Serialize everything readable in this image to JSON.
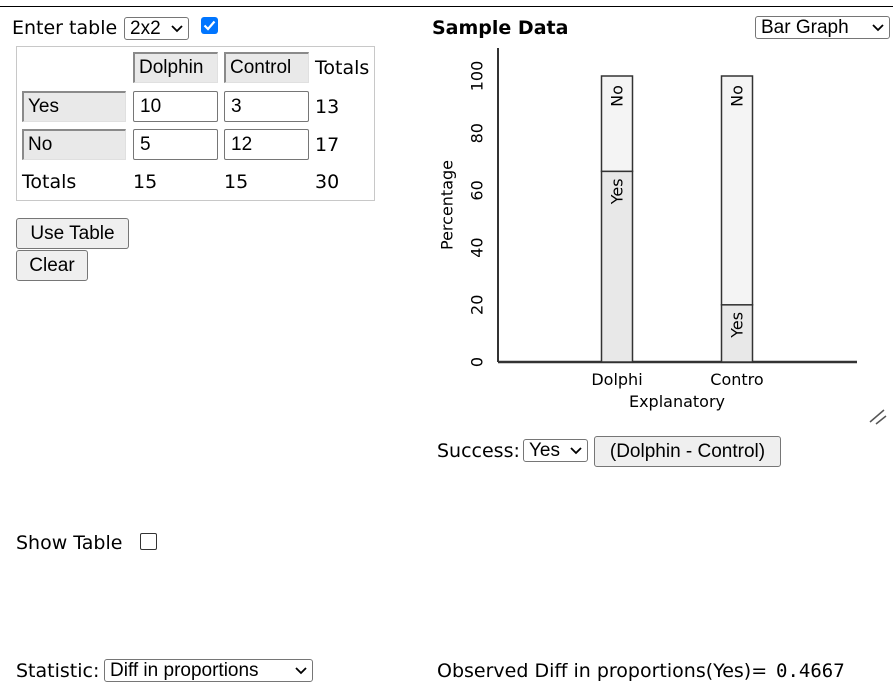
{
  "header": {
    "enter_table_label": "Enter table",
    "table_size": "2x2",
    "checkbox_checked": true
  },
  "table": {
    "col_headers": [
      "Dolphin",
      "Control"
    ],
    "totals_header": "Totals",
    "rows": [
      {
        "label": "Yes",
        "values": [
          "10",
          "3"
        ],
        "total": "13"
      },
      {
        "label": "No",
        "values": [
          "5",
          "12"
        ],
        "total": "17"
      }
    ],
    "totals_row_label": "Totals",
    "col_totals": [
      "15",
      "15"
    ],
    "grand_total": "30"
  },
  "buttons": {
    "use_table": "Use Table",
    "clear": "Clear"
  },
  "chart_panel": {
    "title": "Sample Data",
    "graph_type": "Bar Graph"
  },
  "chart_data": {
    "type": "bar",
    "stacked": true,
    "categories": [
      "Dolphi",
      "Contro"
    ],
    "series": [
      {
        "name": "Yes",
        "values": [
          66.67,
          20
        ]
      },
      {
        "name": "No",
        "values": [
          33.33,
          80
        ]
      }
    ],
    "xlabel": "Explanatory",
    "ylabel": "Percentage",
    "ylim": [
      0,
      100
    ],
    "yticks": [
      "0",
      "20",
      "40",
      "60",
      "80",
      "100"
    ],
    "grid": false
  },
  "success": {
    "label": "Success:",
    "value": "Yes",
    "difference_button": "(Dolphin - Control)"
  },
  "show_table": {
    "label": "Show Table",
    "checked": false
  },
  "statistic": {
    "label": "Statistic:",
    "value": "Diff in proportions",
    "observed_label": "Observed Diff in proportions(Yes)=",
    "observed_value": "0.4667"
  }
}
